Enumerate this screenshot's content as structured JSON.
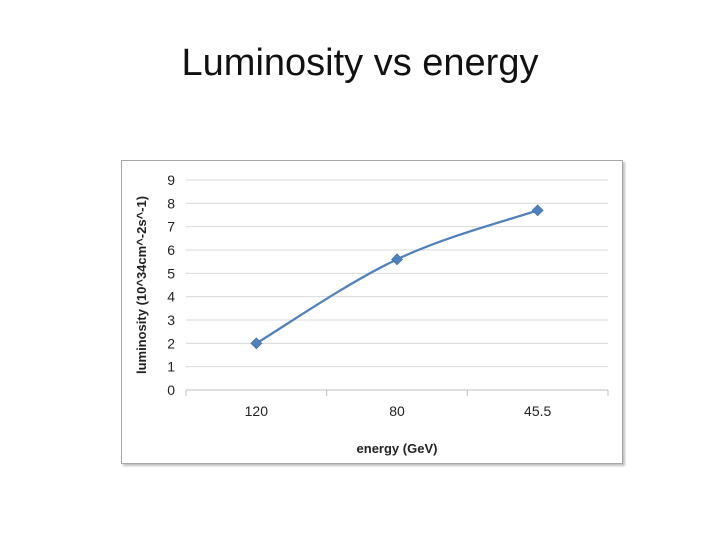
{
  "slide": {
    "title": "Luminosity vs energy"
  },
  "chart_data": {
    "type": "line",
    "title": "",
    "xlabel": "energy (GeV)",
    "ylabel": "luminosity (10^34cm^-2s^-1)",
    "categories": [
      "120",
      "80",
      "45.5"
    ],
    "series": [
      {
        "name": "",
        "values": [
          2,
          5.6,
          7.7
        ],
        "color": "#4f81bd",
        "marker": "diamond",
        "smooth": true
      }
    ],
    "ylim": [
      0,
      9
    ],
    "yticks": [
      0,
      1,
      2,
      3,
      4,
      5,
      6,
      7,
      8,
      9
    ],
    "grid": "horizontal",
    "legend": "none"
  }
}
